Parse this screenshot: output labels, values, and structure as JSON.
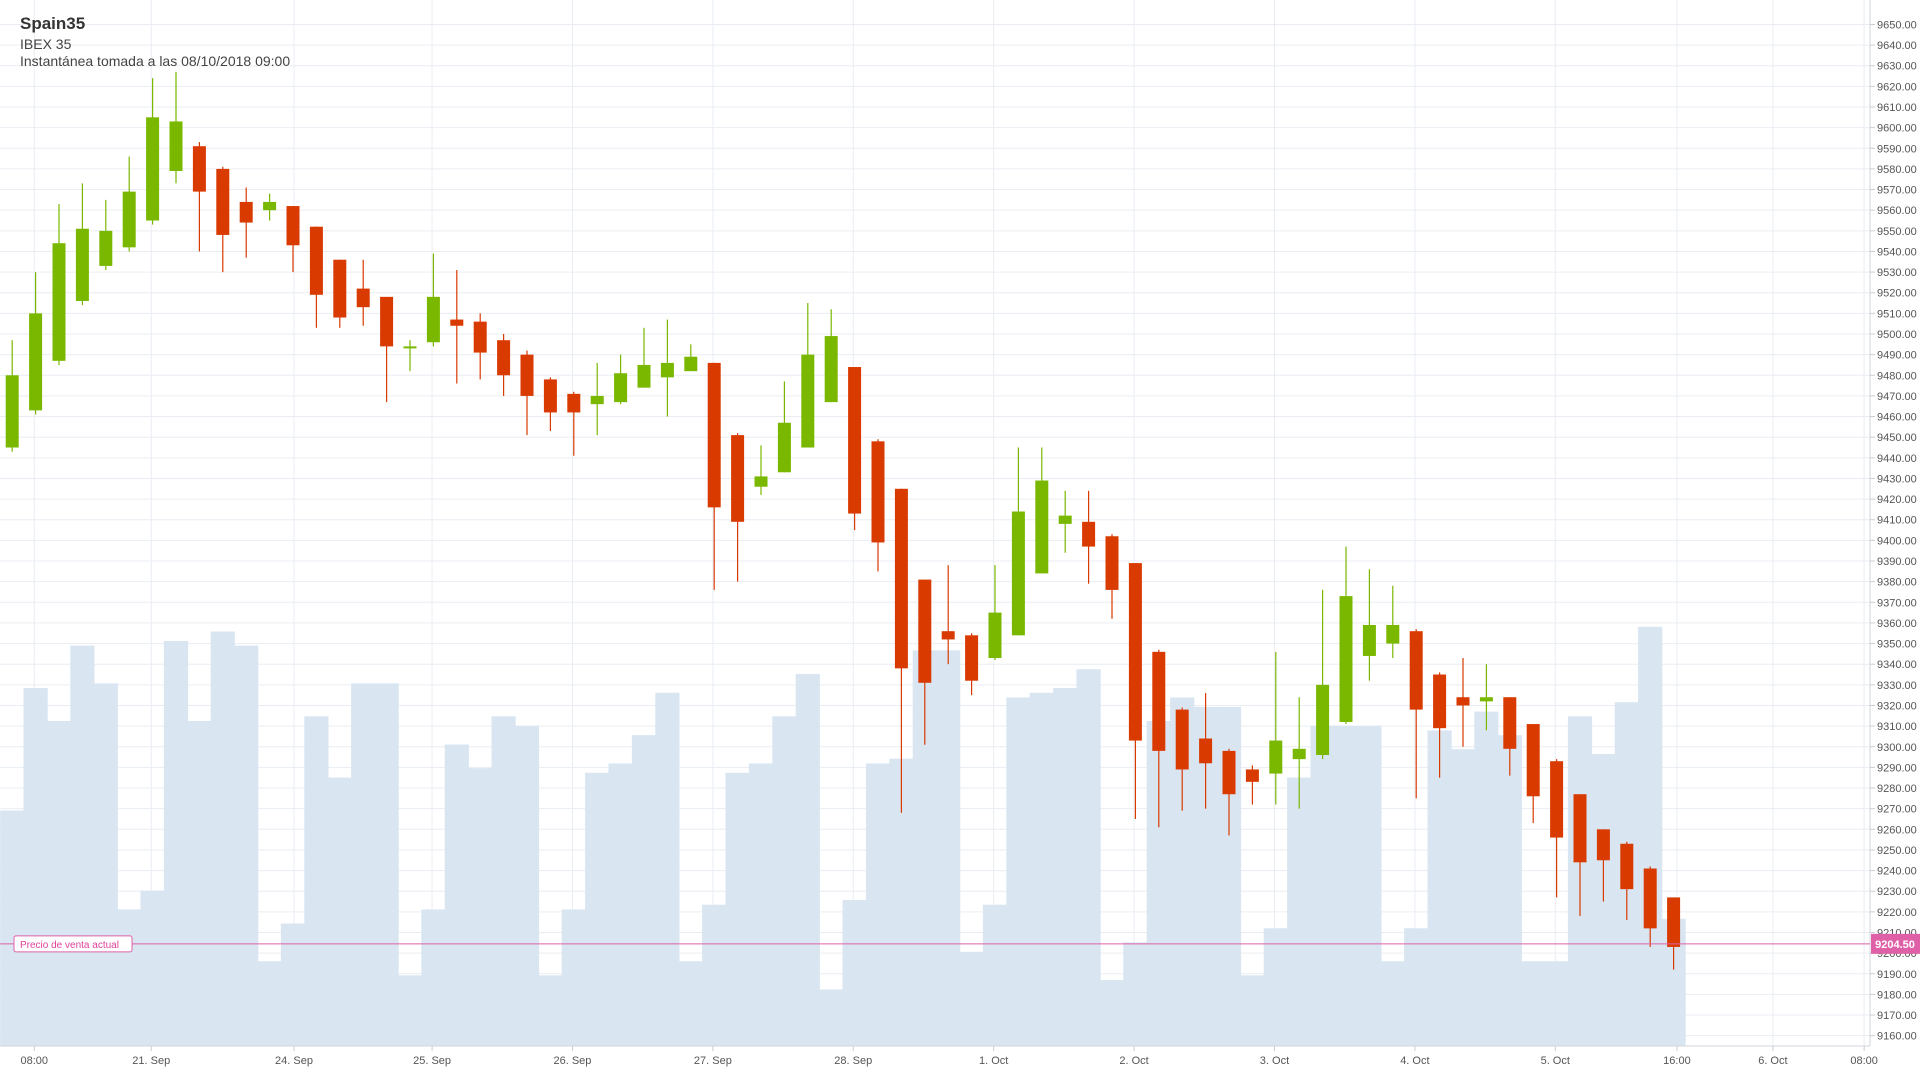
{
  "header": {
    "symbol": "Spain35",
    "instrument": "IBEX 35",
    "snapshot": "Instantánea tomada a las 08/10/2018 09:00"
  },
  "colors": {
    "up": "#7ab800",
    "down": "#d93a00",
    "volume": "#d9e6f2",
    "grid": "#e9edf3",
    "price_line": "#e060a8"
  },
  "current_price": {
    "label": "Precio de venta actual",
    "value": "9204.50",
    "price": 9204.5
  },
  "chart_data": {
    "type": "candlestick",
    "title": "Spain35",
    "y_axis_side": "right",
    "ylim": [
      9155,
      9657
    ],
    "y_ticks": [
      9160,
      9170,
      9180,
      9190,
      9200,
      9210,
      9220,
      9230,
      9240,
      9250,
      9260,
      9270,
      9280,
      9290,
      9300,
      9310,
      9320,
      9330,
      9340,
      9350,
      9360,
      9370,
      9380,
      9390,
      9400,
      9410,
      9420,
      9430,
      9440,
      9450,
      9460,
      9470,
      9480,
      9490,
      9500,
      9510,
      9520,
      9530,
      9540,
      9550,
      9560,
      9570,
      9580,
      9590,
      9600,
      9610,
      9620,
      9630,
      9640,
      9650
    ],
    "y_tick_labels": [
      "9160.00",
      "9170.00",
      "9180.00",
      "9190.00",
      "9200.00",
      "9210.00",
      "9220.00",
      "9230.00",
      "9240.00",
      "9250.00",
      "9260.00",
      "9270.00",
      "9280.00",
      "9290.00",
      "9300.00",
      "9310.00",
      "9320.00",
      "9330.00",
      "9340.00",
      "9350.00",
      "9360.00",
      "9370.00",
      "9380.00",
      "9390.00",
      "9400.00",
      "9410.00",
      "9420.00",
      "9430.00",
      "9440.00",
      "9450.00",
      "9460.00",
      "9470.00",
      "9480.00",
      "9490.00",
      "9500.00",
      "9510.00",
      "9520.00",
      "9530.00",
      "9540.00",
      "9550.00",
      "9560.00",
      "9570.00",
      "9580.00",
      "9590.00",
      "9600.00",
      "9610.00",
      "9620.00",
      "9630.00",
      "9640.00",
      "9650.00"
    ],
    "x_ticks": [
      {
        "label": "08:00",
        "slot": 0.9
      },
      {
        "label": "21. Sep",
        "slot": 5.9
      },
      {
        "label": "24. Sep",
        "slot": 12
      },
      {
        "label": "25. Sep",
        "slot": 17.9
      },
      {
        "label": "26. Sep",
        "slot": 23.9
      },
      {
        "label": "27. Sep",
        "slot": 29.9
      },
      {
        "label": "28. Sep",
        "slot": 35.9
      },
      {
        "label": "1. Oct",
        "slot": 41.9
      },
      {
        "label": "2. Oct",
        "slot": 47.9
      },
      {
        "label": "3. Oct",
        "slot": 53.9
      },
      {
        "label": "4. Oct",
        "slot": 59.9
      },
      {
        "label": "5. Oct",
        "slot": 65.9
      },
      {
        "label": "16:00",
        "slot": 71.1
      },
      {
        "label": "6. Oct",
        "slot": 75.2
      },
      {
        "label": "08:00",
        "slot": 79.1
      }
    ],
    "candles": [
      {
        "o": 9445,
        "h": 9497,
        "l": 9443,
        "c": 9480
      },
      {
        "o": 9463,
        "h": 9530,
        "l": 9461,
        "c": 9510
      },
      {
        "o": 9487,
        "h": 9563,
        "l": 9485,
        "c": 9544
      },
      {
        "o": 9516,
        "h": 9573,
        "l": 9514,
        "c": 9551
      },
      {
        "o": 9533,
        "h": 9565,
        "l": 9531,
        "c": 9550
      },
      {
        "o": 9542,
        "h": 9586,
        "l": 9540,
        "c": 9569
      },
      {
        "o": 9555,
        "h": 9624,
        "l": 9553,
        "c": 9605
      },
      {
        "o": 9579,
        "h": 9627,
        "l": 9573,
        "c": 9603
      },
      {
        "o": 9591,
        "h": 9593,
        "l": 9540,
        "c": 9569
      },
      {
        "o": 9580,
        "h": 9581,
        "l": 9530,
        "c": 9548
      },
      {
        "o": 9564,
        "h": 9571,
        "l": 9537,
        "c": 9554
      },
      {
        "o": 9560,
        "h": 9568,
        "l": 9555,
        "c": 9564
      },
      {
        "o": 9562,
        "h": 9562,
        "l": 9530,
        "c": 9543
      },
      {
        "o": 9552,
        "h": 9552,
        "l": 9503,
        "c": 9519
      },
      {
        "o": 9536,
        "h": 9536,
        "l": 9503,
        "c": 9508
      },
      {
        "o": 9522,
        "h": 9536,
        "l": 9504,
        "c": 9513
      },
      {
        "o": 9518,
        "h": 9518,
        "l": 9467,
        "c": 9494
      },
      {
        "o": 9494,
        "h": 9497,
        "l": 9482,
        "c": 9494
      },
      {
        "o": 9496,
        "h": 9539,
        "l": 9494,
        "c": 9518
      },
      {
        "o": 9507,
        "h": 9531,
        "l": 9476,
        "c": 9504
      },
      {
        "o": 9506,
        "h": 9510,
        "l": 9478,
        "c": 9491
      },
      {
        "o": 9497,
        "h": 9500,
        "l": 9470,
        "c": 9480
      },
      {
        "o": 9490,
        "h": 9492,
        "l": 9451,
        "c": 9470
      },
      {
        "o": 9478,
        "h": 9479,
        "l": 9453,
        "c": 9462
      },
      {
        "o": 9471,
        "h": 9472,
        "l": 9441,
        "c": 9462
      },
      {
        "o": 9466,
        "h": 9486,
        "l": 9451,
        "c": 9470
      },
      {
        "o": 9467,
        "h": 9490,
        "l": 9466,
        "c": 9481
      },
      {
        "o": 9474,
        "h": 9503,
        "l": 9474,
        "c": 9485
      },
      {
        "o": 9479,
        "h": 9507,
        "l": 9460,
        "c": 9486
      },
      {
        "o": 9482,
        "h": 9495,
        "l": 9482,
        "c": 9489
      },
      {
        "o": 9486,
        "h": 9486,
        "l": 9376,
        "c": 9416
      },
      {
        "o": 9451,
        "h": 9452,
        "l": 9380,
        "c": 9409
      },
      {
        "o": 9426,
        "h": 9446,
        "l": 9422,
        "c": 9431
      },
      {
        "o": 9433,
        "h": 9477,
        "l": 9433,
        "c": 9457
      },
      {
        "o": 9445,
        "h": 9515,
        "l": 9445,
        "c": 9490
      },
      {
        "o": 9467,
        "h": 9512,
        "l": 9467,
        "c": 9499
      },
      {
        "o": 9484,
        "h": 9484,
        "l": 9405,
        "c": 9413
      },
      {
        "o": 9448,
        "h": 9449,
        "l": 9385,
        "c": 9399
      },
      {
        "o": 9425,
        "h": 9425,
        "l": 9268,
        "c": 9338
      },
      {
        "o": 9381,
        "h": 9381,
        "l": 9301,
        "c": 9331
      },
      {
        "o": 9356,
        "h": 9388,
        "l": 9340,
        "c": 9352
      },
      {
        "o": 9354,
        "h": 9355,
        "l": 9325,
        "c": 9332
      },
      {
        "o": 9343,
        "h": 9388,
        "l": 9342,
        "c": 9365
      },
      {
        "o": 9354,
        "h": 9445,
        "l": 9354,
        "c": 9414
      },
      {
        "o": 9384,
        "h": 9445,
        "l": 9384,
        "c": 9429
      },
      {
        "o": 9408,
        "h": 9424,
        "l": 9394,
        "c": 9412
      },
      {
        "o": 9409,
        "h": 9424,
        "l": 9379,
        "c": 9397
      },
      {
        "o": 9402,
        "h": 9403,
        "l": 9362,
        "c": 9376
      },
      {
        "o": 9389,
        "h": 9389,
        "l": 9265,
        "c": 9303
      },
      {
        "o": 9346,
        "h": 9347,
        "l": 9261,
        "c": 9298
      },
      {
        "o": 9318,
        "h": 9319,
        "l": 9269,
        "c": 9289
      },
      {
        "o": 9304,
        "h": 9326,
        "l": 9270,
        "c": 9292
      },
      {
        "o": 9298,
        "h": 9299,
        "l": 9257,
        "c": 9277
      },
      {
        "o": 9289,
        "h": 9291,
        "l": 9272,
        "c": 9283
      },
      {
        "o": 9287,
        "h": 9346,
        "l": 9272,
        "c": 9303
      },
      {
        "o": 9294,
        "h": 9324,
        "l": 9270,
        "c": 9299
      },
      {
        "o": 9296,
        "h": 9376,
        "l": 9294,
        "c": 9330
      },
      {
        "o": 9312,
        "h": 9397,
        "l": 9311,
        "c": 9373
      },
      {
        "o": 9344,
        "h": 9386,
        "l": 9332,
        "c": 9359
      },
      {
        "o": 9350,
        "h": 9378,
        "l": 9343,
        "c": 9359
      },
      {
        "o": 9356,
        "h": 9357,
        "l": 9275,
        "c": 9318
      },
      {
        "o": 9335,
        "h": 9336,
        "l": 9285,
        "c": 9309
      },
      {
        "o": 9324,
        "h": 9343,
        "l": 9300,
        "c": 9320
      },
      {
        "o": 9322,
        "h": 9340,
        "l": 9308,
        "c": 9324
      },
      {
        "o": 9324,
        "h": 9324,
        "l": 9286,
        "c": 9299
      },
      {
        "o": 9311,
        "h": 9311,
        "l": 9263,
        "c": 9276
      },
      {
        "o": 9293,
        "h": 9294,
        "l": 9227,
        "c": 9256
      },
      {
        "o": 9277,
        "h": 9277,
        "l": 9218,
        "c": 9244
      },
      {
        "o": 9260,
        "h": 9260,
        "l": 9225,
        "c": 9245
      },
      {
        "o": 9253,
        "h": 9254,
        "l": 9216,
        "c": 9231
      },
      {
        "o": 9241,
        "h": 9242,
        "l": 9203,
        "c": 9212
      },
      {
        "o": 9227,
        "h": 9227,
        "l": 9192,
        "c": 9203
      }
    ],
    "volume_ylim": [
      0,
      1
    ],
    "volume": [
      0.5,
      0.76,
      0.69,
      0.85,
      0.77,
      0.29,
      0.33,
      0.86,
      0.69,
      0.88,
      0.85,
      0.18,
      0.26,
      0.7,
      0.57,
      0.77,
      0.77,
      0.15,
      0.29,
      0.64,
      0.59,
      0.7,
      0.68,
      0.15,
      0.29,
      0.58,
      0.6,
      0.66,
      0.75,
      0.18,
      0.3,
      0.58,
      0.6,
      0.7,
      0.79,
      0.12,
      0.31,
      0.6,
      0.61,
      0.84,
      0.84,
      0.2,
      0.3,
      0.74,
      0.75,
      0.76,
      0.8,
      0.14,
      0.22,
      0.69,
      0.74,
      0.72,
      0.72,
      0.15,
      0.25,
      0.57,
      0.68,
      0.68,
      0.68,
      0.18,
      0.25,
      0.67,
      0.63,
      0.71,
      0.66,
      0.18,
      0.18,
      0.7,
      0.62,
      0.73,
      0.89,
      0.27
    ]
  }
}
